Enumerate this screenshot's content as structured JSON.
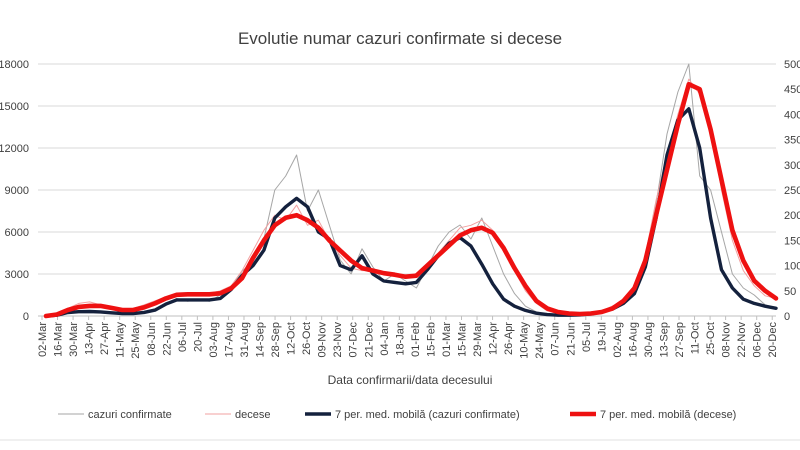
{
  "chart_data": {
    "type": "line",
    "title": "Evolutie numar cazuri confirmate si decese",
    "xlabel": "Data confirmarii/data decesului",
    "ylabel": "",
    "y2label": "",
    "ylim": [
      0,
      18000
    ],
    "y2lim": [
      0,
      500
    ],
    "yticks": [
      "0",
      "3000",
      "6000",
      "9000",
      "12000",
      "15000",
      "18000"
    ],
    "y2ticks": [
      "0",
      "50",
      "100",
      "150",
      "200",
      "250",
      "300",
      "350",
      "400",
      "450",
      "500"
    ],
    "x_tick_labels": [
      "02-Mar",
      "16-Mar",
      "30-Mar",
      "13-Apr",
      "27-Apr",
      "11-May",
      "25-May",
      "08-Jun",
      "22-Jun",
      "06-Jul",
      "20-Jul",
      "03-Aug",
      "17-Aug",
      "31-Aug",
      "14-Sep",
      "28-Sep",
      "12-Oct",
      "26-Oct",
      "09-Nov",
      "23-Nov",
      "07-Dec",
      "21-Dec",
      "04-Jan",
      "18-Jan",
      "01-Feb",
      "15-Feb",
      "01-Mar",
      "15-Mar",
      "29-Mar",
      "12-Apr",
      "26-Apr",
      "10-May",
      "24-May",
      "07-Jun",
      "21-Jun",
      "05-Jul",
      "19-Jul",
      "02-Aug",
      "16-Aug",
      "30-Aug",
      "13-Sep",
      "27-Sep",
      "11-Oct",
      "25-Oct",
      "08-Nov",
      "22-Nov",
      "06-Dec",
      "20-Dec"
    ],
    "grid": "horizontal",
    "legend_position": "bottom",
    "series": [
      {
        "name": "cazuri confirmate",
        "axis": "left",
        "color": "#a6a6a6",
        "values": [
          0,
          100,
          350,
          330,
          300,
          250,
          200,
          150,
          200,
          300,
          450,
          900,
          1250,
          1050,
          1200,
          1050,
          1500,
          2100,
          3200,
          3900,
          5500,
          9000,
          10000,
          11500,
          7500,
          9000,
          6500,
          4000,
          3000,
          4800,
          3500,
          2500,
          3000,
          2500,
          2000,
          3500,
          5000,
          6000,
          6500,
          5500,
          7000,
          5000,
          3000,
          1600,
          700,
          300,
          120,
          70,
          60,
          90,
          150,
          300,
          500,
          1000,
          1800,
          4000,
          8000,
          13000,
          16000,
          18000,
          10000,
          9000,
          6000,
          3000,
          2000,
          1500,
          800,
          500
        ]
      },
      {
        "name": "decese",
        "axis": "right",
        "color": "#f2a0a0",
        "values": [
          0,
          5,
          15,
          25,
          28,
          22,
          18,
          12,
          15,
          22,
          30,
          38,
          45,
          45,
          42,
          45,
          50,
          60,
          90,
          130,
          170,
          200,
          190,
          220,
          180,
          190,
          150,
          120,
          95,
          90,
          90,
          85,
          80,
          75,
          85,
          105,
          125,
          150,
          175,
          180,
          190,
          170,
          130,
          90,
          50,
          25,
          10,
          5,
          3,
          3,
          5,
          10,
          20,
          30,
          60,
          120,
          230,
          320,
          400,
          470,
          440,
          380,
          250,
          150,
          90,
          60,
          40,
          35
        ]
      },
      {
        "name": "7 per. med. mobilă (cazuri confirmate)",
        "axis": "left",
        "color": "#14213d",
        "values": [
          0,
          60,
          250,
          310,
          320,
          290,
          230,
          180,
          180,
          260,
          420,
          850,
          1150,
          1150,
          1150,
          1150,
          1250,
          1900,
          2900,
          3600,
          4700,
          7000,
          7800,
          8400,
          7800,
          6000,
          5500,
          3600,
          3300,
          4300,
          3000,
          2500,
          2400,
          2300,
          2400,
          3300,
          4300,
          5200,
          5600,
          5000,
          3700,
          2300,
          1200,
          700,
          400,
          200,
          100,
          60,
          60,
          80,
          150,
          300,
          500,
          900,
          1600,
          3500,
          7000,
          11500,
          14000,
          14800,
          12000,
          7000,
          3300,
          2000,
          1200,
          900,
          700,
          550
        ]
      },
      {
        "name": "7 per. med. mobilă (decese)",
        "axis": "right",
        "color": "#ee1111",
        "values": [
          0,
          3,
          12,
          18,
          20,
          20,
          16,
          12,
          12,
          17,
          25,
          35,
          42,
          43,
          43,
          43,
          45,
          55,
          75,
          115,
          150,
          180,
          195,
          200,
          190,
          175,
          150,
          130,
          110,
          95,
          90,
          85,
          82,
          78,
          80,
          100,
          120,
          140,
          160,
          170,
          175,
          165,
          135,
          95,
          60,
          30,
          15,
          8,
          5,
          4,
          5,
          8,
          15,
          30,
          55,
          110,
          200,
          290,
          380,
          460,
          450,
          370,
          270,
          170,
          110,
          70,
          50,
          35
        ]
      }
    ]
  }
}
